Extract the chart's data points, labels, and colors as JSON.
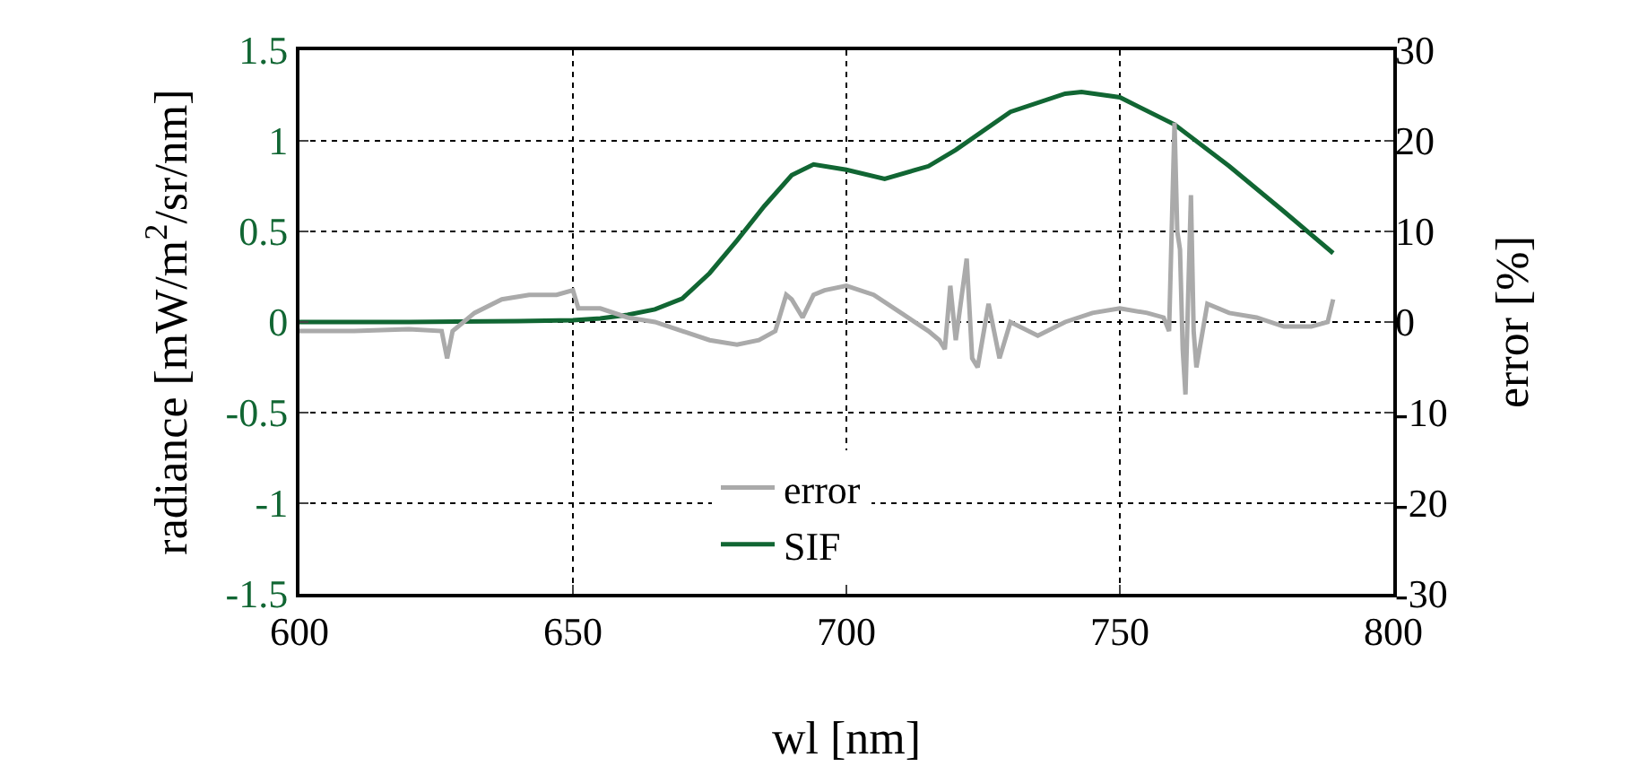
{
  "chart_data": {
    "type": "line",
    "xlabel": "wl [nm]",
    "ylabel": "radiance [mW/m$^{2}$/sr/nm]",
    "y2label": "error [%]",
    "xlim": [
      600,
      800
    ],
    "xticks": [
      600,
      650,
      700,
      750,
      800
    ],
    "ylim": [
      -1.5,
      1.5
    ],
    "yticks": [
      -1.5,
      -1,
      -0.5,
      0,
      0.5,
      1,
      1.5
    ],
    "y2lim": [
      -30,
      30
    ],
    "y2ticks": [
      -30,
      -20,
      -10,
      0,
      10,
      20,
      30
    ],
    "grid": true,
    "legend": "bottom",
    "line_style": "solid",
    "marker": "none",
    "series": [
      {
        "name": "error",
        "color": "#aaaaaa",
        "axis": "y2",
        "x": [
          600,
          610,
          620,
          626,
          627,
          628,
          632,
          637,
          642,
          647,
          650,
          651,
          655,
          660,
          665,
          670,
          675,
          680,
          684,
          687,
          689,
          690,
          692,
          694,
          696,
          700,
          705,
          710,
          715,
          717,
          718,
          719,
          720,
          722,
          723,
          724,
          726,
          728,
          730,
          735,
          740,
          745,
          750,
          755,
          758,
          759,
          760,
          760.5,
          761,
          761.5,
          762,
          763,
          763.5,
          764,
          766,
          770,
          775,
          780,
          785,
          788,
          789
        ],
        "values": [
          -1,
          -1,
          -0.8,
          -1,
          -4,
          -1,
          1,
          2.5,
          3,
          3,
          3.5,
          1.5,
          1.5,
          0.5,
          0,
          -1,
          -2,
          -2.5,
          -2,
          -1,
          3,
          2.5,
          0.5,
          3,
          3.5,
          4,
          3,
          1,
          -1,
          -2,
          -3,
          4,
          -2,
          7,
          -4,
          -5,
          2,
          -4,
          0,
          -1.5,
          0,
          1,
          1.5,
          1,
          0.5,
          -1,
          22,
          10,
          8,
          -3,
          -8,
          14,
          -1,
          -5,
          2,
          1,
          0.5,
          -0.5,
          -0.5,
          0,
          2.5
        ]
      },
      {
        "name": "SIF",
        "color": "#116633",
        "x": [
          600,
          620,
          640,
          650,
          655,
          660,
          665,
          670,
          675,
          680,
          685,
          690,
          694,
          700,
          707,
          715,
          720,
          730,
          740,
          743,
          750,
          760,
          770,
          780,
          789
        ],
        "values": [
          0,
          0,
          0.005,
          0.01,
          0.02,
          0.04,
          0.07,
          0.13,
          0.27,
          0.45,
          0.64,
          0.81,
          0.87,
          0.84,
          0.79,
          0.86,
          0.95,
          1.16,
          1.26,
          1.27,
          1.24,
          1.09,
          0.86,
          0.61,
          0.38
        ]
      }
    ]
  }
}
